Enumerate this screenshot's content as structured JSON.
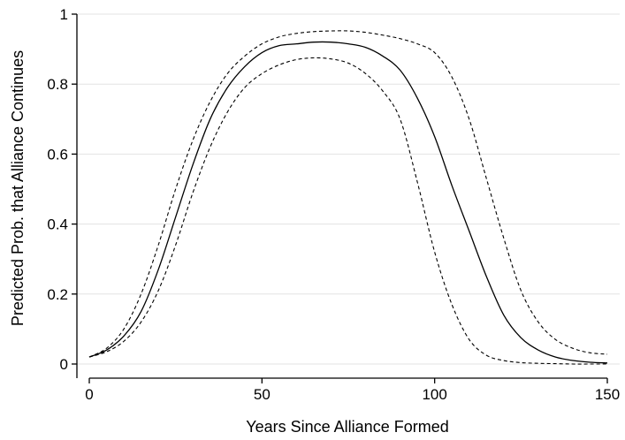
{
  "chart_data": {
    "type": "line",
    "title": "",
    "xlabel": "Years Since Alliance Formed",
    "ylabel": "Predicted Prob. that Alliance Continues",
    "xlim": [
      0,
      150
    ],
    "ylim": [
      0,
      1
    ],
    "xticks": [
      0,
      50,
      100,
      150
    ],
    "yticks": [
      0,
      0.2,
      0.4,
      0.6,
      0.8,
      1
    ],
    "ytick_labels": [
      "0",
      "0.2",
      "0.4",
      "0.6",
      "0.8",
      "1"
    ],
    "grid": "horizontal",
    "legend": "none",
    "series": [
      {
        "style": "solid",
        "x": [
          0,
          5,
          10,
          15,
          20,
          25,
          30,
          35,
          40,
          45,
          50,
          55,
          60,
          65,
          70,
          75,
          80,
          85,
          90,
          95,
          100,
          105,
          110,
          115,
          120,
          125,
          130,
          135,
          140,
          145,
          150
        ],
        "y": [
          0.02,
          0.04,
          0.08,
          0.15,
          0.27,
          0.42,
          0.57,
          0.7,
          0.79,
          0.85,
          0.89,
          0.91,
          0.915,
          0.92,
          0.92,
          0.915,
          0.905,
          0.88,
          0.84,
          0.76,
          0.65,
          0.51,
          0.38,
          0.25,
          0.14,
          0.075,
          0.04,
          0.02,
          0.01,
          0.005,
          0.003
        ]
      },
      {
        "style": "dashed",
        "x": [
          0,
          5,
          10,
          15,
          20,
          25,
          30,
          35,
          40,
          45,
          50,
          55,
          60,
          65,
          70,
          75,
          80,
          85,
          90,
          95,
          100,
          105,
          110,
          115,
          120,
          125,
          130,
          135,
          140,
          145,
          150
        ],
        "y": [
          0.02,
          0.045,
          0.1,
          0.2,
          0.34,
          0.5,
          0.64,
          0.75,
          0.83,
          0.88,
          0.915,
          0.935,
          0.945,
          0.95,
          0.952,
          0.952,
          0.948,
          0.94,
          0.93,
          0.915,
          0.89,
          0.82,
          0.7,
          0.53,
          0.36,
          0.21,
          0.12,
          0.07,
          0.045,
          0.032,
          0.028
        ]
      },
      {
        "style": "dashed",
        "x": [
          0,
          5,
          10,
          15,
          20,
          25,
          30,
          35,
          40,
          45,
          50,
          55,
          60,
          65,
          70,
          75,
          80,
          85,
          90,
          95,
          100,
          105,
          110,
          115,
          120,
          125,
          130,
          135,
          140,
          145,
          150
        ],
        "y": [
          0.02,
          0.035,
          0.065,
          0.12,
          0.21,
          0.34,
          0.49,
          0.62,
          0.72,
          0.79,
          0.83,
          0.855,
          0.87,
          0.875,
          0.872,
          0.86,
          0.83,
          0.78,
          0.7,
          0.52,
          0.32,
          0.17,
          0.07,
          0.025,
          0.01,
          0.004,
          0.002,
          0.001,
          0.0,
          0.0,
          0.0
        ]
      }
    ]
  }
}
